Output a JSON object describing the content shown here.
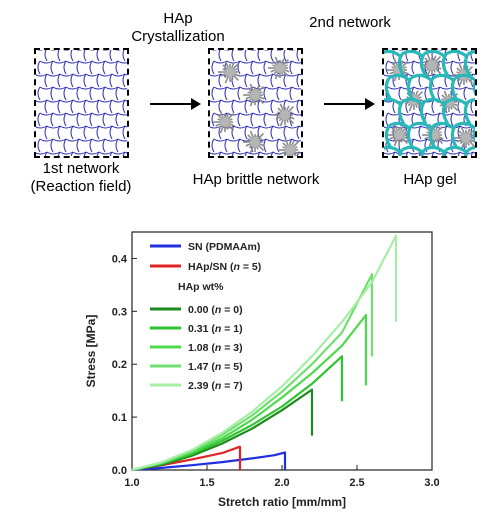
{
  "schematic": {
    "step1_label_line1": "1st network",
    "step1_label_line2": "(Reaction field)",
    "arrow1_label_line1": "HAp",
    "arrow1_label_line2": "Crystallization",
    "step2_label": "HAp brittle network",
    "arrow2_label": "2nd network",
    "step3_label": "HAp gel",
    "network_color": "#2b2bb8",
    "second_network_color": "#29b8b8",
    "crystal_color": "#8a8a8a"
  },
  "chart_data": {
    "type": "line",
    "xlabel": "Stretch ratio [mm/mm]",
    "ylabel": "Stress [MPa]",
    "xlim": [
      1.0,
      3.0
    ],
    "ylim": [
      0.0,
      0.45
    ],
    "xticks": [
      "1.0",
      "1.5",
      "2.0",
      "2.5",
      "3.0"
    ],
    "yticks": [
      "0.0",
      "0.1",
      "0.2",
      "0.3",
      "0.4"
    ],
    "legend_position": "top-left",
    "legend_subtitle_prefix": "HAp",
    "legend_subtitle_suffix": "wt%",
    "series": [
      {
        "name": "SN (PDMAAm)",
        "color": "#1f2fe0",
        "legend_group": "main",
        "x": [
          1.0,
          1.2,
          1.4,
          1.6,
          1.8,
          1.95,
          2.02,
          2.02
        ],
        "y": [
          0.0,
          0.004,
          0.009,
          0.015,
          0.022,
          0.028,
          0.033,
          0.0
        ]
      },
      {
        "name": "HAp/SN (n = 5)",
        "color": "#e02424",
        "legend_group": "main",
        "x": [
          1.0,
          1.2,
          1.4,
          1.6,
          1.72,
          1.72
        ],
        "y": [
          0.0,
          0.009,
          0.02,
          0.032,
          0.044,
          0.0
        ]
      },
      {
        "name": "0.00 (n = 0)",
        "color": "#1e8a1e",
        "legend_group": "hap",
        "x": [
          1.0,
          1.2,
          1.4,
          1.6,
          1.8,
          2.0,
          2.2,
          2.2
        ],
        "y": [
          0.0,
          0.01,
          0.027,
          0.05,
          0.078,
          0.113,
          0.152,
          0.065
        ]
      },
      {
        "name": "0.31 (n = 1)",
        "color": "#2fc42f",
        "legend_group": "hap",
        "x": [
          1.0,
          1.2,
          1.4,
          1.6,
          1.8,
          2.0,
          2.2,
          2.4,
          2.4
        ],
        "y": [
          0.0,
          0.012,
          0.03,
          0.055,
          0.085,
          0.12,
          0.163,
          0.215,
          0.13
        ]
      },
      {
        "name": "1.08 (n = 3)",
        "color": "#4cd94c",
        "legend_group": "hap",
        "x": [
          1.0,
          1.2,
          1.4,
          1.6,
          1.8,
          2.0,
          2.2,
          2.4,
          2.56,
          2.56
        ],
        "y": [
          0.0,
          0.013,
          0.033,
          0.06,
          0.095,
          0.137,
          0.183,
          0.235,
          0.293,
          0.16
        ]
      },
      {
        "name": "1.47 (n = 5)",
        "color": "#6fe06f",
        "legend_group": "hap",
        "x": [
          1.0,
          1.2,
          1.4,
          1.6,
          1.8,
          2.0,
          2.2,
          2.4,
          2.6,
          2.6
        ],
        "y": [
          0.0,
          0.014,
          0.036,
          0.066,
          0.103,
          0.148,
          0.2,
          0.26,
          0.37,
          0.215
        ]
      },
      {
        "name": "2.39 (n = 7)",
        "color": "#a6eda6",
        "legend_group": "hap",
        "x": [
          1.0,
          1.2,
          1.4,
          1.6,
          1.8,
          2.0,
          2.2,
          2.4,
          2.6,
          2.76,
          2.76
        ],
        "y": [
          0.0,
          0.015,
          0.038,
          0.07,
          0.11,
          0.158,
          0.215,
          0.28,
          0.355,
          0.443,
          0.28
        ]
      }
    ]
  }
}
